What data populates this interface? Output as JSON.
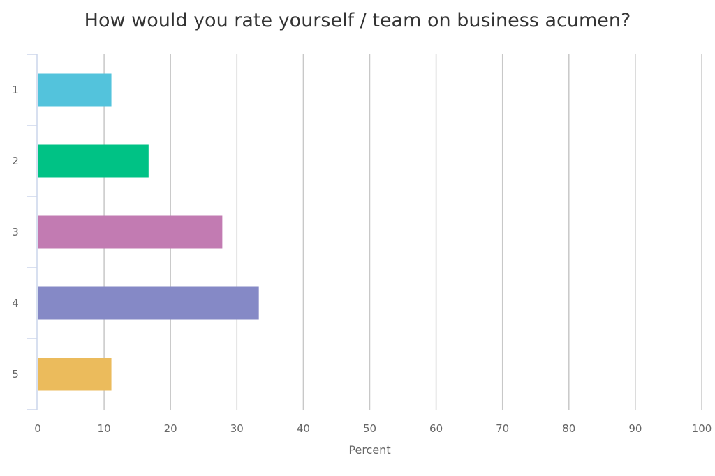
{
  "chart_data": {
    "type": "bar",
    "orientation": "horizontal",
    "title": "How would you rate yourself / team on business acumen?",
    "xlabel": "Percent",
    "ylabel": "",
    "categories": [
      "1",
      "2",
      "3",
      "4",
      "5"
    ],
    "values": [
      11.1,
      16.7,
      27.8,
      33.3,
      11.1
    ],
    "colors": [
      "#53c3dc",
      "#00c285",
      "#c27bb2",
      "#8589c6",
      "#ebbb5c"
    ],
    "xlim": [
      0,
      100
    ],
    "xticks": [
      "0",
      "10",
      "20",
      "30",
      "40",
      "50",
      "60",
      "70",
      "80",
      "90",
      "100"
    ],
    "grid": true,
    "legend": "none"
  }
}
